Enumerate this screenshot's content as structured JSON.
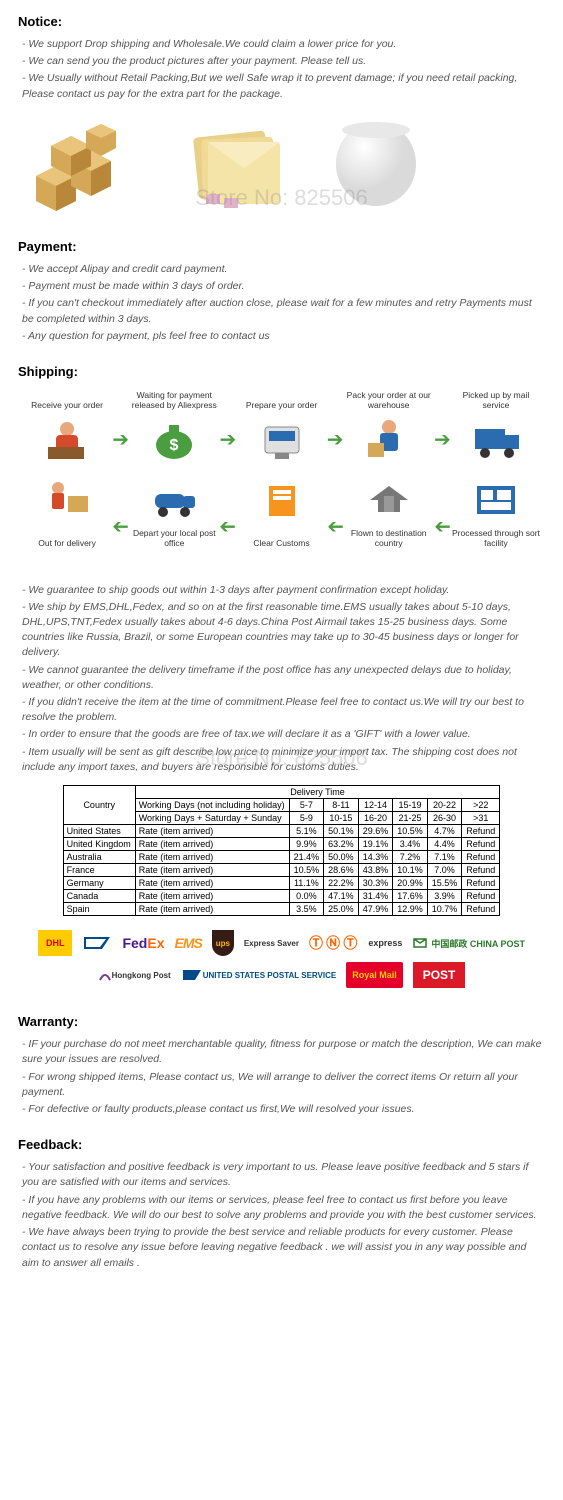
{
  "watermark": "Store No: 825506",
  "notice": {
    "title": "Notice:",
    "lines": [
      "- We support Drop shipping and Wholesale.We could claim a lower price for you.",
      "- We can send you the product pictures after your payment.  Please tell us.",
      "- We Usually without Retail Packing,But we well Safe wrap it to prevent damage; if you need retail packing, Please contact us pay for the extra part for the package."
    ]
  },
  "payment": {
    "title": "Payment:",
    "lines": [
      "- We accept Alipay and credit card payment.",
      "- Payment must be made within 3 days of order.",
      "- If you can't checkout immediately after auction close, please wait for a few minutes and retry Payments must be completed within 3 days.",
      "- Any question for payment, pls feel free to contact us"
    ]
  },
  "shipping": {
    "title": "Shipping:",
    "flow_top": [
      "Receive your order",
      "Waiting for payment released by Aliexpress",
      "Prepare your order",
      "Pack your order at our warehouse",
      "Picked up by mail service"
    ],
    "flow_bottom": [
      "Out for delivery",
      "Depart your local post office",
      "Clear Customs",
      "Flown to destination country",
      "Processed through sort facility"
    ],
    "lines": [
      "- We guarantee to ship goods out within 1-3 days after payment confirmation except holiday.",
      "- We ship by EMS,DHL,Fedex, and so on at the first reasonable time.EMS usually takes about 5-10 days, DHL,UPS,TNT,Fedex usually takes about 4-6 days.China Post Airmail takes 15-25 business days. Some countries like Russia, Brazil, or some European countries may take up to 30-45 business days or longer for delivery.",
      "- We cannot guarantee the delivery timeframe if the post office has any unexpected delays due to holiday, weather, or other conditions.",
      "- If you didn't receive the item at the time of commitment.Please feel free to contact us.We will try our best to resolve the problem.",
      "- In order to ensure that the goods are free of tax.we will declare it as a 'GIFT' with a lower value.",
      "- Item usually will be sent as gift describe low price to minimize your import tax. The shipping cost does not include any import taxes, and buyers are responsible for customs duties."
    ]
  },
  "delivery_table": {
    "header": "Delivery Time",
    "row1_label": "Working Days (not including holiday)",
    "row2_label": "Working Days + Saturday + Sunday",
    "rate_label": "Rate (item arrived)",
    "country_label": "Country",
    "cols1": [
      "5-7",
      "8-11",
      "12-14",
      "15-19",
      "20-22",
      ">22"
    ],
    "cols2": [
      "5-9",
      "10-15",
      "16-20",
      "21-25",
      "26-30",
      ">31"
    ],
    "rows": [
      {
        "c": "United States",
        "v": [
          "5.1%",
          "50.1%",
          "29.6%",
          "10.5%",
          "4.7%",
          "Refund"
        ]
      },
      {
        "c": "United Kingdom",
        "v": [
          "9.9%",
          "63.2%",
          "19.1%",
          "3.4%",
          "4.4%",
          "Refund"
        ]
      },
      {
        "c": "Australia",
        "v": [
          "21.4%",
          "50.0%",
          "14.3%",
          "7.2%",
          "7.1%",
          "Refund"
        ]
      },
      {
        "c": "France",
        "v": [
          "10.5%",
          "28.6%",
          "43.8%",
          "10.1%",
          "7.0%",
          "Refund"
        ]
      },
      {
        "c": "Germany",
        "v": [
          "11.1%",
          "22.2%",
          "30.3%",
          "20.9%",
          "15.5%",
          "Refund"
        ]
      },
      {
        "c": "Canada",
        "v": [
          "0.0%",
          "47.1%",
          "31.4%",
          "17.6%",
          "3.9%",
          "Refund"
        ]
      },
      {
        "c": "Spain",
        "v": [
          "3.5%",
          "25.0%",
          "47.9%",
          "12.9%",
          "10.7%",
          "Refund"
        ]
      }
    ]
  },
  "carriers": {
    "dhl": "DHL",
    "usps": "UNITED STATES POSTAL SERVICE",
    "fedex": "Fed",
    "fedexEx": "Ex",
    "ems": "EMS",
    "ups": "ups",
    "exsaver": "Express Saver",
    "tnt": "TNT",
    "tntexp": "express",
    "chinapost": "中国邮政 CHINA POST",
    "hkpost": "Hongkong Post",
    "usps2": "UNITED STATES POSTAL SERVICE",
    "royal": "Royal Mail",
    "auspost": "POST"
  },
  "warranty": {
    "title": "Warranty:",
    "lines": [
      "- IF your purchase do not meet merchantable quality, fitness for purpose or match the description, We can make sure your issues are resolved.",
      "- For wrong shipped items, Please contact us, We will arrange to deliver the correct items Or return all your payment.",
      "- For defective or faulty products,please contact us first,We will resolved your issues."
    ]
  },
  "feedback": {
    "title": "Feedback:",
    "lines": [
      "- Your satisfaction and positive feedback is very important to us. Please leave positive feedback and 5 stars if you are satisfied with our items and services.",
      "- If you have any problems with our items or services, please feel free to contact us first before you leave negative feedback. We will do our best to solve any problems and provide you with the best customer services.",
      "- We have always been trying to provide the best service and reliable products for every customer. Please contact us to resolve any issue before leaving negative feedback . we will assist you in any way possible and aim to answer all emails ."
    ]
  },
  "colors": {
    "green": "#4a9e3f",
    "orange": "#f7941d",
    "blue": "#2b6cb0",
    "tan": "#d4a857",
    "darktan": "#b8873a"
  }
}
